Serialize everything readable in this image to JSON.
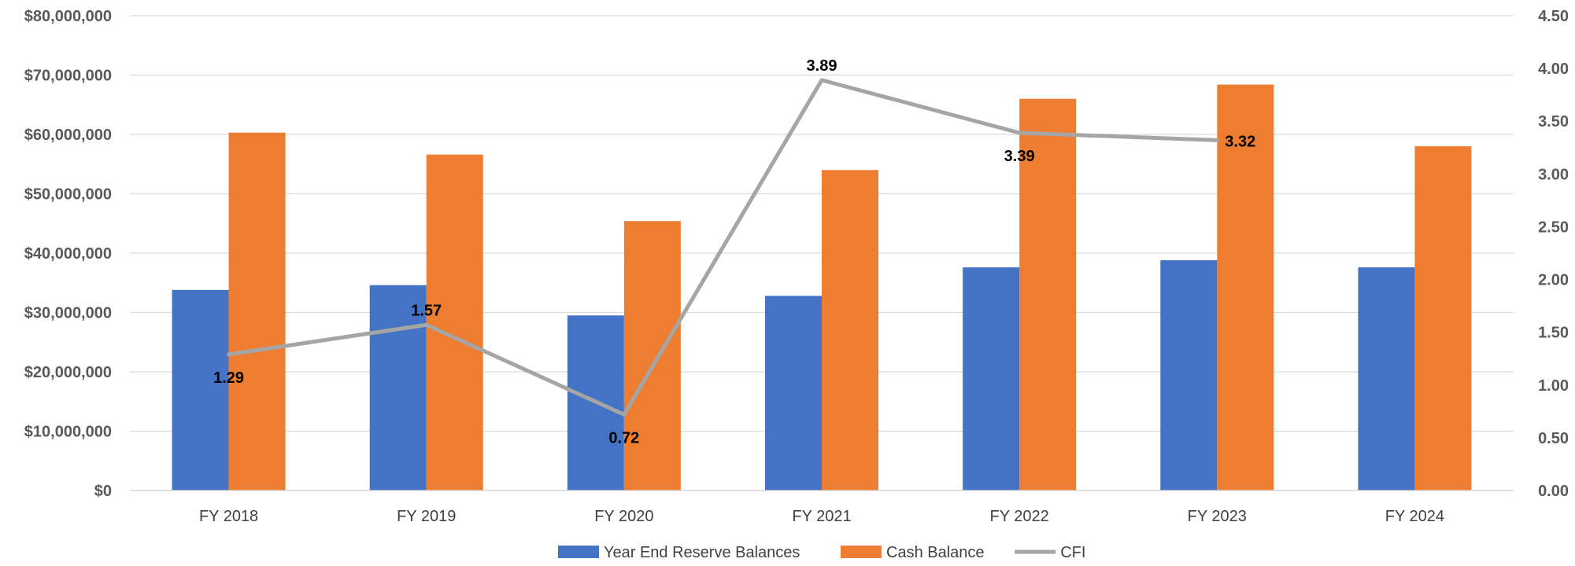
{
  "chart_data": {
    "type": "bar",
    "categories": [
      "FY 2018",
      "FY 2019",
      "FY 2020",
      "FY 2021",
      "FY 2022",
      "FY 2023",
      "FY 2024"
    ],
    "series": [
      {
        "name": "Year End Reserve Balances",
        "type": "bar",
        "axis": "left",
        "color": "#4472C4",
        "values": [
          33800000,
          34600000,
          29500000,
          32800000,
          37600000,
          38800000,
          37600000
        ]
      },
      {
        "name": "Cash Balance",
        "type": "bar",
        "axis": "left",
        "color": "#ED7D31",
        "values": [
          60300000,
          56600000,
          45400000,
          54000000,
          66000000,
          68400000,
          58000000
        ]
      },
      {
        "name": "CFI",
        "type": "line",
        "axis": "right",
        "color": "#A5A5A5",
        "values": [
          1.29,
          1.57,
          0.72,
          3.89,
          3.39,
          3.32,
          null
        ],
        "labels": [
          "1.29",
          "1.57",
          "0.72",
          "3.89",
          "3.39",
          "3.32",
          ""
        ]
      }
    ],
    "y_left": {
      "min": 0,
      "max": 80000000,
      "step": 10000000,
      "ticks": [
        "$0",
        "$10,000,000",
        "$20,000,000",
        "$30,000,000",
        "$40,000,000",
        "$50,000,000",
        "$60,000,000",
        "$70,000,000",
        "$80,000,000"
      ]
    },
    "y_right": {
      "min": 0,
      "max": 4.5,
      "step": 0.5,
      "ticks": [
        "0.00",
        "0.50",
        "1.00",
        "1.50",
        "2.00",
        "2.50",
        "3.00",
        "3.50",
        "4.00",
        "4.50"
      ]
    },
    "grid": true,
    "legend": "bottom",
    "title": "",
    "xlabel": "",
    "ylabel": ""
  }
}
